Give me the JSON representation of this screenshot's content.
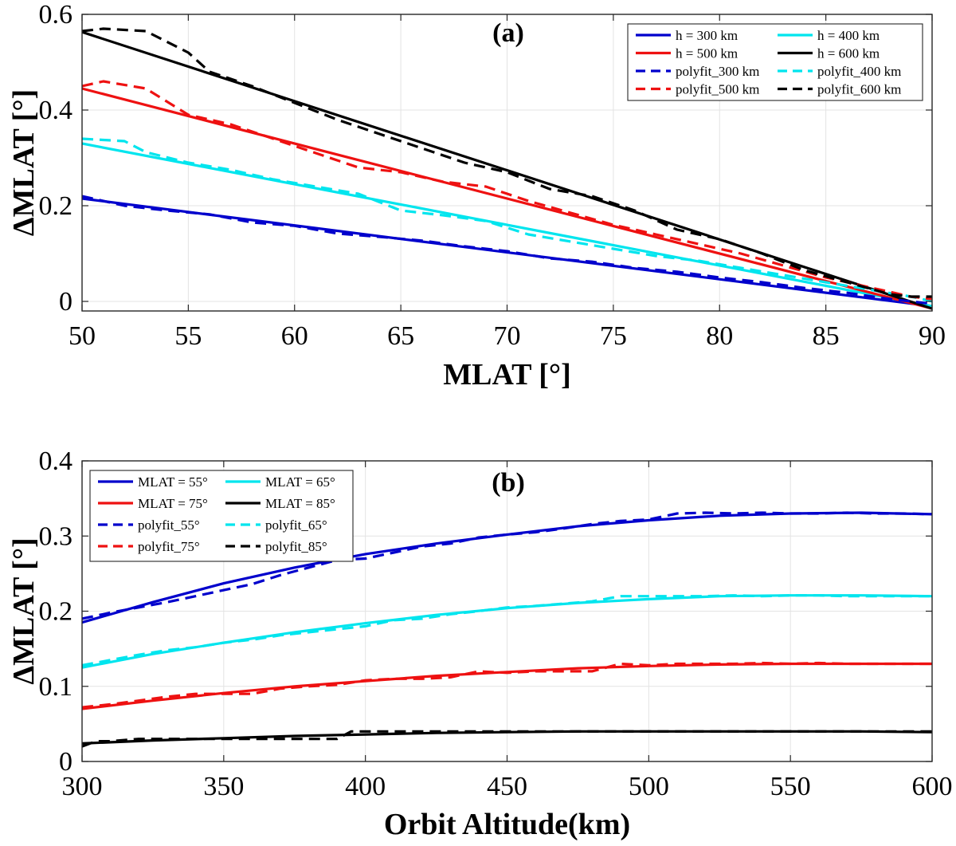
{
  "chart_data": [
    {
      "type": "line",
      "panel": "(a)",
      "xlabel": "MLAT [°]",
      "ylabel": "ΔMLAT [°]",
      "xlim": [
        50,
        90
      ],
      "ylim": [
        -0.02,
        0.6
      ],
      "xticks": [
        50,
        55,
        60,
        65,
        70,
        75,
        80,
        85,
        90
      ],
      "yticks": [
        0,
        0.2,
        0.4,
        0.6
      ],
      "xtick_labels": [
        "50",
        "55",
        "60",
        "65",
        "70",
        "75",
        "80",
        "85",
        "90"
      ],
      "ytick_labels": [
        "0",
        "0.2",
        "0.4",
        "0.6"
      ],
      "grid": true,
      "legend_position": "top-right",
      "legend_columns": 2,
      "series": [
        {
          "name": "h = 300 km",
          "color": "#0000cc",
          "dash": "solid",
          "x": [
            50,
            90
          ],
          "y": [
            0.215,
            -0.01
          ]
        },
        {
          "name": "h = 400 km",
          "color": "#00e5ee",
          "dash": "solid",
          "x": [
            50,
            90
          ],
          "y": [
            0.33,
            -0.01
          ]
        },
        {
          "name": "h = 500 km",
          "color": "#ee1111",
          "dash": "solid",
          "x": [
            50,
            90
          ],
          "y": [
            0.445,
            -0.015
          ]
        },
        {
          "name": "h = 600 km",
          "color": "#000000",
          "dash": "solid",
          "x": [
            50,
            90
          ],
          "y": [
            0.563,
            -0.015
          ]
        },
        {
          "name": "polyfit_300 km",
          "color": "#0000cc",
          "dash": "dashed",
          "x": [
            50,
            52,
            54,
            56,
            58,
            60,
            62,
            64,
            66,
            68,
            70,
            72,
            74,
            76,
            78,
            80,
            82,
            84,
            86,
            88,
            89,
            90
          ],
          "y": [
            0.22,
            0.2,
            0.19,
            0.182,
            0.165,
            0.158,
            0.142,
            0.135,
            0.127,
            0.115,
            0.105,
            0.09,
            0.083,
            0.07,
            0.062,
            0.05,
            0.04,
            0.028,
            0.018,
            0.005,
            0.0,
            -0.005
          ]
        },
        {
          "name": "polyfit_400 km",
          "color": "#00e5ee",
          "dash": "dashed",
          "x": [
            50,
            52,
            53,
            55,
            57,
            59,
            61,
            63,
            65,
            67,
            69,
            71,
            73,
            75,
            77,
            79,
            81,
            83,
            85,
            87,
            89,
            90
          ],
          "y": [
            0.34,
            0.335,
            0.312,
            0.29,
            0.275,
            0.255,
            0.24,
            0.225,
            0.19,
            0.18,
            0.168,
            0.14,
            0.125,
            0.11,
            0.095,
            0.085,
            0.07,
            0.055,
            0.04,
            0.025,
            0.01,
            0.0
          ]
        },
        {
          "name": "polyfit_500 km",
          "color": "#ee1111",
          "dash": "dashed",
          "x": [
            50,
            51,
            53,
            55,
            57,
            59,
            61,
            63,
            65,
            67,
            69,
            71,
            73,
            75,
            77,
            79,
            81,
            83,
            85,
            87,
            89,
            90
          ],
          "y": [
            0.45,
            0.46,
            0.445,
            0.39,
            0.37,
            0.34,
            0.31,
            0.28,
            0.27,
            0.25,
            0.24,
            0.21,
            0.185,
            0.16,
            0.14,
            0.12,
            0.1,
            0.075,
            0.05,
            0.03,
            0.01,
            0.005
          ]
        },
        {
          "name": "polyfit_600 km",
          "color": "#000000",
          "dash": "dashed",
          "x": [
            50,
            51,
            53,
            55,
            56,
            58,
            60,
            62,
            64,
            66,
            68,
            70,
            72,
            74,
            76,
            78,
            80,
            82,
            84,
            86,
            88,
            89,
            90
          ],
          "y": [
            0.565,
            0.57,
            0.565,
            0.52,
            0.48,
            0.45,
            0.415,
            0.38,
            0.35,
            0.32,
            0.29,
            0.27,
            0.235,
            0.22,
            0.19,
            0.15,
            0.13,
            0.1,
            0.065,
            0.04,
            0.015,
            0.01,
            0.01
          ]
        }
      ]
    },
    {
      "type": "line",
      "panel": "(b)",
      "xlabel": "Orbit Altitude(km)",
      "ylabel": "ΔMLAT [°]",
      "xlim": [
        300,
        600
      ],
      "ylim": [
        0,
        0.4
      ],
      "xticks": [
        300,
        350,
        400,
        450,
        500,
        550,
        600
      ],
      "yticks": [
        0,
        0.1,
        0.2,
        0.3,
        0.4
      ],
      "xtick_labels": [
        "300",
        "350",
        "400",
        "450",
        "500",
        "550",
        "600"
      ],
      "ytick_labels": [
        "0",
        "0.1",
        "0.2",
        "0.3",
        "0.4"
      ],
      "grid": true,
      "legend_position": "top-left",
      "legend_columns": 2,
      "series": [
        {
          "name": "MLAT = 55°",
          "color": "#0000cc",
          "dash": "solid",
          "x": [
            300,
            325,
            350,
            375,
            400,
            425,
            450,
            475,
            500,
            525,
            550,
            575,
            600
          ],
          "y": [
            0.185,
            0.212,
            0.237,
            0.258,
            0.276,
            0.29,
            0.302,
            0.313,
            0.321,
            0.327,
            0.33,
            0.331,
            0.329
          ]
        },
        {
          "name": "MLAT = 65°",
          "color": "#00e5ee",
          "dash": "solid",
          "x": [
            300,
            325,
            350,
            375,
            400,
            425,
            450,
            475,
            500,
            525,
            550,
            575,
            600
          ],
          "y": [
            0.125,
            0.143,
            0.158,
            0.172,
            0.184,
            0.195,
            0.204,
            0.211,
            0.216,
            0.22,
            0.221,
            0.221,
            0.22
          ]
        },
        {
          "name": "MLAT = 75°",
          "color": "#ee1111",
          "dash": "solid",
          "x": [
            300,
            325,
            350,
            375,
            400,
            425,
            450,
            475,
            500,
            525,
            550,
            575,
            600
          ],
          "y": [
            0.07,
            0.081,
            0.091,
            0.1,
            0.107,
            0.114,
            0.119,
            0.124,
            0.127,
            0.129,
            0.13,
            0.13,
            0.13
          ]
        },
        {
          "name": "MLAT = 85°",
          "color": "#000000",
          "dash": "solid",
          "x": [
            300,
            325,
            350,
            375,
            400,
            425,
            450,
            475,
            500,
            525,
            550,
            575,
            600
          ],
          "y": [
            0.024,
            0.028,
            0.031,
            0.034,
            0.036,
            0.038,
            0.039,
            0.04,
            0.04,
            0.04,
            0.04,
            0.04,
            0.039
          ]
        },
        {
          "name": "polyfit_55°",
          "color": "#0000cc",
          "dash": "dashed",
          "x": [
            300,
            310,
            320,
            330,
            340,
            350,
            360,
            370,
            380,
            390,
            400,
            410,
            420,
            430,
            440,
            450,
            460,
            470,
            480,
            490,
            500,
            510,
            520,
            530,
            540,
            550,
            560,
            570,
            580,
            590,
            600
          ],
          "y": [
            0.19,
            0.198,
            0.205,
            0.212,
            0.22,
            0.228,
            0.236,
            0.248,
            0.258,
            0.268,
            0.27,
            0.278,
            0.286,
            0.29,
            0.298,
            0.302,
            0.305,
            0.31,
            0.316,
            0.32,
            0.322,
            0.33,
            0.331,
            0.33,
            0.331,
            0.33,
            0.33,
            0.331,
            0.33,
            0.33,
            0.329
          ]
        },
        {
          "name": "polyfit_65°",
          "color": "#00e5ee",
          "dash": "dashed",
          "x": [
            300,
            310,
            320,
            330,
            340,
            350,
            360,
            370,
            380,
            390,
            400,
            410,
            420,
            430,
            440,
            450,
            460,
            470,
            480,
            490,
            500,
            510,
            520,
            530,
            540,
            550,
            560,
            570,
            580,
            590,
            600
          ],
          "y": [
            0.128,
            0.135,
            0.142,
            0.148,
            0.152,
            0.158,
            0.162,
            0.168,
            0.172,
            0.176,
            0.18,
            0.188,
            0.19,
            0.196,
            0.2,
            0.205,
            0.207,
            0.21,
            0.213,
            0.22,
            0.22,
            0.22,
            0.22,
            0.221,
            0.22,
            0.221,
            0.221,
            0.22,
            0.22,
            0.22,
            0.22
          ]
        },
        {
          "name": "polyfit_75°",
          "color": "#ee1111",
          "dash": "dashed",
          "x": [
            300,
            310,
            320,
            330,
            340,
            350,
            360,
            370,
            380,
            390,
            400,
            410,
            420,
            430,
            440,
            450,
            460,
            470,
            480,
            490,
            500,
            510,
            520,
            530,
            540,
            550,
            560,
            570,
            580,
            590,
            600
          ],
          "y": [
            0.072,
            0.076,
            0.081,
            0.086,
            0.09,
            0.09,
            0.09,
            0.097,
            0.1,
            0.102,
            0.108,
            0.11,
            0.11,
            0.112,
            0.12,
            0.118,
            0.12,
            0.12,
            0.12,
            0.13,
            0.128,
            0.13,
            0.13,
            0.13,
            0.131,
            0.13,
            0.131,
            0.13,
            0.13,
            0.13,
            0.13
          ]
        },
        {
          "name": "polyfit_85°",
          "color": "#000000",
          "dash": "dashed",
          "x": [
            300,
            305,
            310,
            320,
            330,
            340,
            350,
            360,
            370,
            380,
            390,
            395,
            400,
            410,
            420,
            430,
            440,
            450,
            460,
            470,
            480,
            490,
            500,
            510,
            520,
            530,
            540,
            550,
            560,
            570,
            580,
            590,
            600
          ],
          "y": [
            0.02,
            0.027,
            0.027,
            0.03,
            0.03,
            0.03,
            0.03,
            0.03,
            0.03,
            0.03,
            0.03,
            0.04,
            0.04,
            0.04,
            0.04,
            0.04,
            0.04,
            0.04,
            0.04,
            0.04,
            0.04,
            0.04,
            0.04,
            0.04,
            0.04,
            0.04,
            0.04,
            0.04,
            0.04,
            0.04,
            0.04,
            0.04,
            0.04
          ]
        }
      ]
    }
  ]
}
